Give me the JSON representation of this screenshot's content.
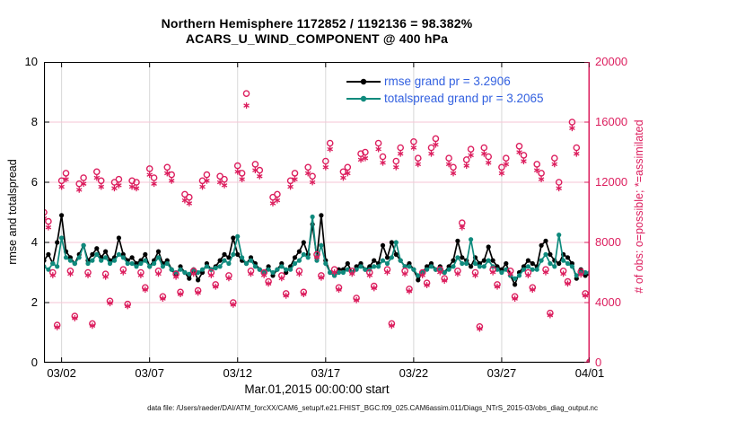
{
  "title": {
    "line1": "Northern Hemisphere 1172852 / 1192136 = 98.382%",
    "line2": "ACARS_U_WIND_COMPONENT @ 400 hPa"
  },
  "legend": [
    {
      "label": "rmse grand pr = 3.2906",
      "color": "#000000"
    },
    {
      "label": "totalspread grand pr = 3.2065",
      "color": "#0f8a7d"
    }
  ],
  "legend_text_color": "#3361e0",
  "axes": {
    "left": {
      "label": "rmse and totalspread",
      "ticks": [
        0,
        2,
        4,
        6,
        8,
        10
      ],
      "range": [
        0,
        10
      ],
      "color": "#000000"
    },
    "right": {
      "label": "# of obs: o=possible; *=assimilated",
      "ticks": [
        0,
        4000,
        8000,
        12000,
        16000,
        20000
      ],
      "range": [
        0,
        20000
      ],
      "color": "#dc1e5e"
    },
    "x": {
      "label": "Mar.01,2015 00:00:00 start",
      "tick_labels": [
        "03/02",
        "03/07",
        "03/12",
        "03/17",
        "03/22",
        "03/27",
        "04/01"
      ],
      "tick_positions": [
        2,
        7,
        12,
        17,
        22,
        27,
        32
      ],
      "range": [
        1,
        32
      ]
    }
  },
  "footer": {
    "data_file": "data file: /Users/raeder/DAI/ATM_forcXX/CAM6_setup/f.e21.FHIST_BGC.f09_025.CAM6assim.011/Diags_NTrS_2015-03/obs_diag_output.nc"
  },
  "colors": {
    "obs": "#dc1e5e",
    "grid_horizontal": "#f6c6d6",
    "grid_vertical": "#d8d8d8",
    "rmse": "#000000",
    "totalspread": "#0f8a7d"
  },
  "chart_data": {
    "type": "line",
    "grid": true,
    "legend_position": "top-center",
    "x_start": 1,
    "x_step": 0.25,
    "x_range": [
      1,
      32
    ],
    "left_ylim": [
      0,
      10
    ],
    "right_ylim": [
      0,
      20000
    ],
    "series": [
      {
        "name": "rmse",
        "axis": "left",
        "color": "#000000",
        "marker": "dot",
        "values": [
          3.4,
          3.6,
          3.3,
          4.0,
          4.9,
          3.7,
          3.5,
          3.3,
          3.6,
          3.9,
          3.4,
          3.6,
          3.8,
          3.5,
          3.7,
          3.4,
          3.5,
          4.15,
          3.6,
          3.4,
          3.5,
          3.3,
          3.4,
          3.6,
          3.2,
          3.4,
          3.7,
          3.3,
          3.4,
          3.1,
          2.9,
          3.2,
          3.0,
          2.8,
          3.1,
          2.75,
          3.0,
          3.3,
          3.1,
          3.2,
          3.4,
          3.6,
          3.5,
          4.15,
          3.6,
          3.4,
          3.3,
          3.5,
          3.3,
          3.1,
          3.0,
          3.2,
          2.9,
          3.1,
          3.3,
          3.0,
          3.2,
          3.5,
          3.7,
          4.0,
          3.6,
          4.6,
          3.5,
          4.9,
          3.4,
          3.0,
          2.9,
          3.1,
          3.1,
          3.3,
          3.0,
          3.2,
          3.3,
          3.1,
          3.2,
          3.4,
          3.3,
          3.9,
          3.5,
          4.0,
          3.6,
          3.4,
          3.2,
          3.3,
          3.1,
          2.75,
          3.0,
          3.2,
          3.3,
          3.1,
          3.2,
          3.0,
          3.2,
          3.4,
          4.05,
          3.5,
          3.4,
          3.2,
          3.5,
          3.3,
          3.4,
          3.85,
          3.4,
          3.2,
          3.1,
          3.3,
          2.9,
          2.6,
          3.0,
          3.2,
          3.4,
          3.3,
          3.2,
          3.9,
          4.05,
          3.6,
          3.4,
          3.3,
          3.6,
          3.5,
          3.3,
          2.8,
          3.1,
          2.9,
          2.95
        ]
      },
      {
        "name": "totalspread",
        "axis": "left",
        "color": "#0f8a7d",
        "marker": "dot",
        "values": [
          3.2,
          3.1,
          3.3,
          3.2,
          4.15,
          3.5,
          3.4,
          3.3,
          3.5,
          3.9,
          3.3,
          3.4,
          3.6,
          3.4,
          3.5,
          3.3,
          3.4,
          3.6,
          3.5,
          3.3,
          3.3,
          3.2,
          3.3,
          3.4,
          3.2,
          3.3,
          3.5,
          3.2,
          3.3,
          3.1,
          3.0,
          3.1,
          3.0,
          2.95,
          3.1,
          3.0,
          3.1,
          3.2,
          3.1,
          3.15,
          3.2,
          3.4,
          3.3,
          3.6,
          4.2,
          3.5,
          3.3,
          3.4,
          3.2,
          3.1,
          3.0,
          3.1,
          3.0,
          3.1,
          3.2,
          3.1,
          3.1,
          3.3,
          3.4,
          3.6,
          3.5,
          4.85,
          3.4,
          3.9,
          3.3,
          3.0,
          2.9,
          3.0,
          3.0,
          3.1,
          3.0,
          3.1,
          3.2,
          3.1,
          3.1,
          3.2,
          3.2,
          3.4,
          3.3,
          3.5,
          4.0,
          3.4,
          3.2,
          3.2,
          3.1,
          2.9,
          3.0,
          3.1,
          3.2,
          3.1,
          3.1,
          3.0,
          3.1,
          3.2,
          3.5,
          3.3,
          3.3,
          4.1,
          3.3,
          3.2,
          3.2,
          3.4,
          3.2,
          3.1,
          3.0,
          3.1,
          2.9,
          2.8,
          2.9,
          3.1,
          3.2,
          3.1,
          3.1,
          3.4,
          3.6,
          3.3,
          3.2,
          4.25,
          3.4,
          3.3,
          3.2,
          2.9,
          3.0,
          3.0,
          3.0
        ]
      },
      {
        "name": "possible_obs",
        "axis": "right",
        "color": "#dc1e5e",
        "marker": "circle",
        "values": [
          10000,
          9400,
          6000,
          2500,
          12100,
          12600,
          6100,
          3100,
          11900,
          12300,
          6000,
          2600,
          12700,
          12100,
          5900,
          4100,
          12000,
          12200,
          6200,
          3900,
          12100,
          12000,
          6000,
          5000,
          12900,
          12300,
          6100,
          4400,
          13000,
          12500,
          5900,
          4700,
          11200,
          11000,
          6100,
          4800,
          12100,
          12500,
          6000,
          5200,
          12400,
          12200,
          5800,
          4000,
          13100,
          12600,
          17900,
          6100,
          13200,
          12800,
          6000,
          5400,
          11000,
          11200,
          5800,
          4600,
          12100,
          12600,
          6100,
          4700,
          13000,
          12400,
          7200,
          5800,
          13400,
          14600,
          6200,
          5000,
          12700,
          13000,
          6100,
          4300,
          13900,
          14000,
          6000,
          5100,
          14600,
          13700,
          6200,
          2600,
          13400,
          14300,
          6100,
          4900,
          14700,
          13600,
          6000,
          5300,
          14300,
          14900,
          6200,
          5600,
          13600,
          13000,
          6100,
          9300,
          13500,
          14200,
          6000,
          2400,
          14300,
          13700,
          6200,
          5200,
          13000,
          13600,
          6100,
          4400,
          14400,
          13800,
          6000,
          5000,
          13200,
          12600,
          6200,
          3300,
          13600,
          12000,
          6100,
          5400,
          16000,
          14300,
          6050,
          4600,
          60
        ]
      },
      {
        "name": "assimilated_obs",
        "axis": "right",
        "color": "#dc1e5e",
        "marker": "asterisk",
        "values": [
          9600,
          9000,
          5820,
          2360,
          11700,
          12200,
          5920,
          2960,
          11500,
          11900,
          5820,
          2460,
          12300,
          11700,
          5720,
          3960,
          11600,
          11800,
          6020,
          3760,
          11700,
          11600,
          5820,
          4860,
          12500,
          11900,
          5920,
          4260,
          12600,
          12100,
          5720,
          4560,
          10800,
          10600,
          5920,
          4660,
          11700,
          12100,
          5820,
          5060,
          12000,
          11800,
          5620,
          3860,
          12700,
          12200,
          17100,
          5920,
          12800,
          12400,
          5820,
          5260,
          10600,
          10800,
          5620,
          4460,
          11700,
          12200,
          5920,
          4560,
          12600,
          12000,
          7020,
          5660,
          13000,
          14200,
          6020,
          4860,
          12300,
          12600,
          5920,
          4160,
          13500,
          13600,
          5820,
          4960,
          14200,
          13300,
          6020,
          2460,
          13000,
          13900,
          5920,
          4760,
          14300,
          13200,
          5820,
          5160,
          13900,
          14500,
          6020,
          5460,
          13200,
          12600,
          5920,
          9000,
          13100,
          13800,
          5820,
          2260,
          13900,
          13300,
          6020,
          5060,
          12600,
          13200,
          5920,
          4260,
          14000,
          13400,
          5820,
          4860,
          12800,
          12200,
          6020,
          3160,
          13200,
          11600,
          5920,
          5260,
          15600,
          13900,
          5870,
          4460,
          50
        ]
      }
    ]
  }
}
